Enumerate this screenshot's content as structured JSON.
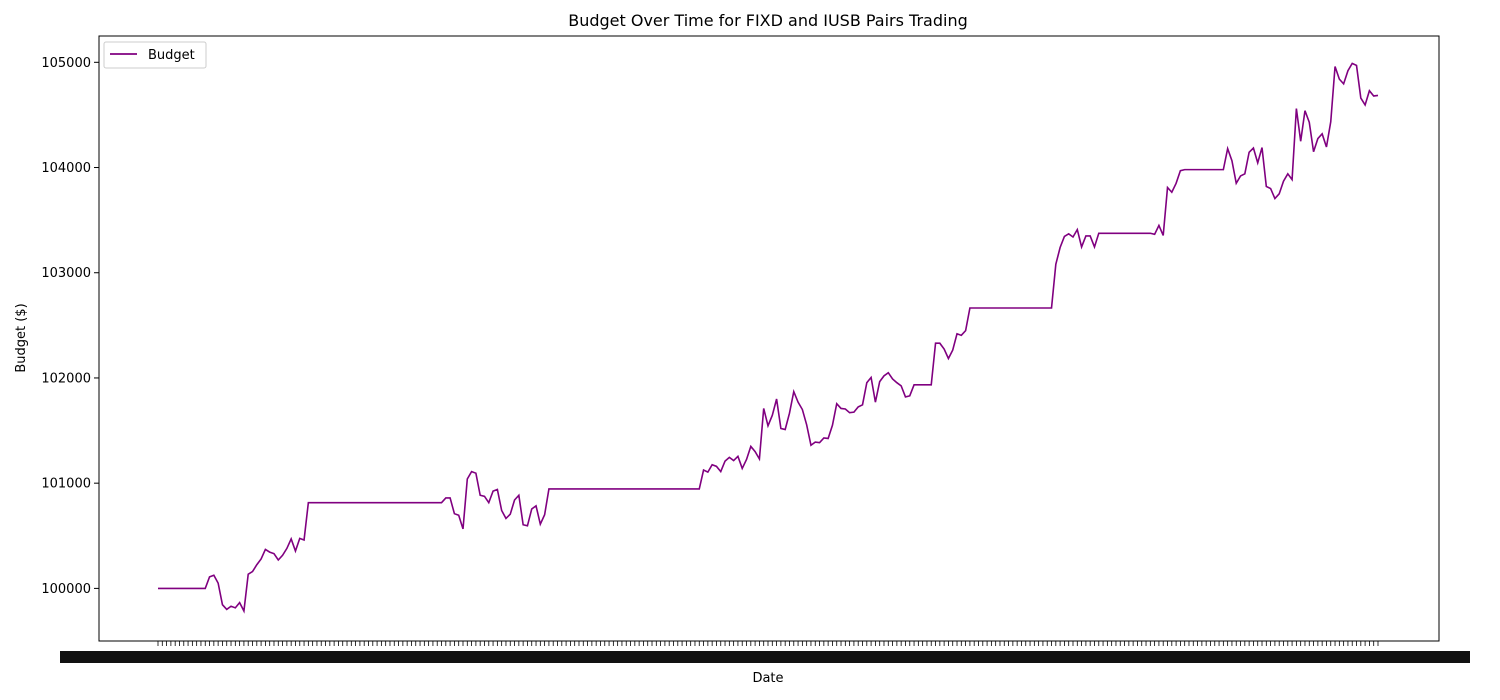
{
  "chart_data": {
    "type": "line",
    "title": "Budget Over Time for FIXD and IUSB Pairs Trading",
    "xlabel": "Date",
    "ylabel": "Budget ($)",
    "ylim": [
      99500,
      105250
    ],
    "yticks": [
      100000,
      101000,
      102000,
      103000,
      104000,
      105000
    ],
    "grid": false,
    "legend_position": "top-left",
    "series": [
      {
        "name": "Budget",
        "color": "#800080",
        "values": [
          100000,
          100000,
          100000,
          100000,
          100000,
          100000,
          100000,
          100000,
          100000,
          100000,
          100000,
          100000,
          100110,
          100125,
          100050,
          99845,
          99800,
          99830,
          99815,
          99865,
          99785,
          100135,
          100160,
          100225,
          100280,
          100370,
          100345,
          100330,
          100270,
          100315,
          100380,
          100470,
          100355,
          100475,
          100460,
          100815,
          100815,
          100815,
          100815,
          100815,
          100815,
          100815,
          100815,
          100815,
          100815,
          100815,
          100815,
          100815,
          100815,
          100815,
          100815,
          100815,
          100815,
          100815,
          100815,
          100815,
          100815,
          100815,
          100815,
          100815,
          100815,
          100815,
          100815,
          100815,
          100815,
          100815,
          100815,
          100860,
          100860,
          100710,
          100695,
          100565,
          101040,
          101110,
          101095,
          100885,
          100875,
          100815,
          100925,
          100940,
          100740,
          100665,
          100705,
          100840,
          100885,
          100605,
          100595,
          100755,
          100785,
          100610,
          100700,
          100945,
          100945,
          100945,
          100945,
          100945,
          100945,
          100945,
          100945,
          100945,
          100945,
          100945,
          100945,
          100945,
          100945,
          100945,
          100945,
          100945,
          100945,
          100945,
          100945,
          100945,
          100945,
          100945,
          100945,
          100945,
          100945,
          100945,
          100945,
          100945,
          100945,
          100945,
          100945,
          100945,
          100945,
          100945,
          100945,
          101125,
          101105,
          101175,
          101160,
          101110,
          101210,
          101245,
          101215,
          101255,
          101140,
          101225,
          101350,
          101300,
          101230,
          101710,
          101545,
          101645,
          101800,
          101520,
          101510,
          101665,
          101870,
          101770,
          101700,
          101555,
          101360,
          101390,
          101385,
          101430,
          101425,
          101550,
          101755,
          101710,
          101705,
          101670,
          101675,
          101725,
          101745,
          101955,
          102005,
          101770,
          101965,
          102020,
          102050,
          101990,
          101955,
          101925,
          101820,
          101830,
          101935,
          101935,
          101935,
          101935,
          101935,
          102330,
          102330,
          102275,
          102185,
          102265,
          102420,
          102405,
          102450,
          102665,
          102665,
          102665,
          102665,
          102665,
          102665,
          102665,
          102665,
          102665,
          102665,
          102665,
          102665,
          102665,
          102665,
          102665,
          102665,
          102665,
          102665,
          102665,
          102665,
          103080,
          103240,
          103345,
          103370,
          103340,
          103410,
          103245,
          103350,
          103350,
          103245,
          103375,
          103375,
          103375,
          103375,
          103375,
          103375,
          103375,
          103375,
          103375,
          103375,
          103375,
          103375,
          103375,
          103365,
          103450,
          103355,
          103810,
          103765,
          103850,
          103970,
          103980,
          103980,
          103980,
          103980,
          103980,
          103980,
          103980,
          103980,
          103980,
          103980,
          104180,
          104065,
          103850,
          103920,
          103940,
          104145,
          104185,
          104045,
          104190,
          103820,
          103800,
          103705,
          103750,
          103870,
          103940,
          103885,
          104560,
          104250,
          104540,
          104430,
          104150,
          104275,
          104320,
          104195,
          104435,
          104960,
          104840,
          104795,
          104920,
          104990,
          104970,
          104660,
          104595,
          104730,
          104680,
          104685
        ]
      }
    ]
  }
}
